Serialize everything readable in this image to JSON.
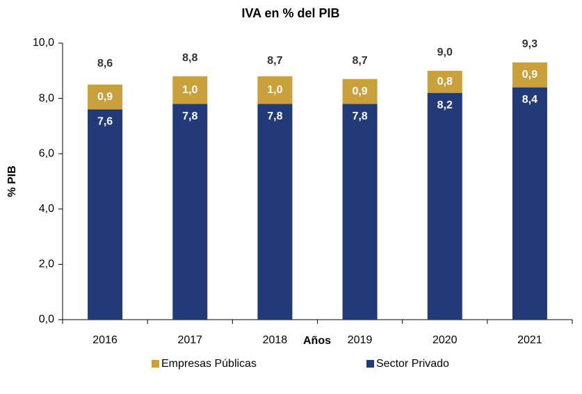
{
  "chart_data": {
    "type": "stacked_bar",
    "title": "IVA en % del PIB",
    "x_label": "Años",
    "y_label": "% PIB",
    "categories": [
      "2016",
      "2017",
      "2018",
      "2019",
      "2020",
      "2021"
    ],
    "series": [
      {
        "name": "Empresas Públicas",
        "color": "#c9a03c",
        "values": [
          0.9,
          1.0,
          1.0,
          0.9,
          0.8,
          0.9
        ],
        "value_labels": [
          "0,9",
          "1,0",
          "1,0",
          "0,9",
          "0,8",
          "0,9"
        ]
      },
      {
        "name": "Sector Privado",
        "color": "#233a78",
        "values": [
          7.6,
          7.8,
          7.8,
          7.8,
          8.2,
          8.4
        ],
        "value_labels": [
          "7,6",
          "7,8",
          "7,8",
          "7,8",
          "8,2",
          "8,4"
        ]
      }
    ],
    "totals": [
      8.6,
      8.8,
      8.7,
      8.7,
      9.0,
      9.3
    ],
    "total_labels": [
      "8,6",
      "8,8",
      "8,7",
      "8,7",
      "9,0",
      "9,3"
    ],
    "ylim": [
      0,
      10
    ],
    "yticks": [
      {
        "value": 0,
        "label": "0,0"
      },
      {
        "value": 2,
        "label": "2,0"
      },
      {
        "value": 4,
        "label": "4,0"
      },
      {
        "value": 6,
        "label": "6,0"
      },
      {
        "value": 8,
        "label": "8,0"
      },
      {
        "value": 10,
        "label": "10,0"
      }
    ],
    "grid": false,
    "legend": "bottom"
  }
}
